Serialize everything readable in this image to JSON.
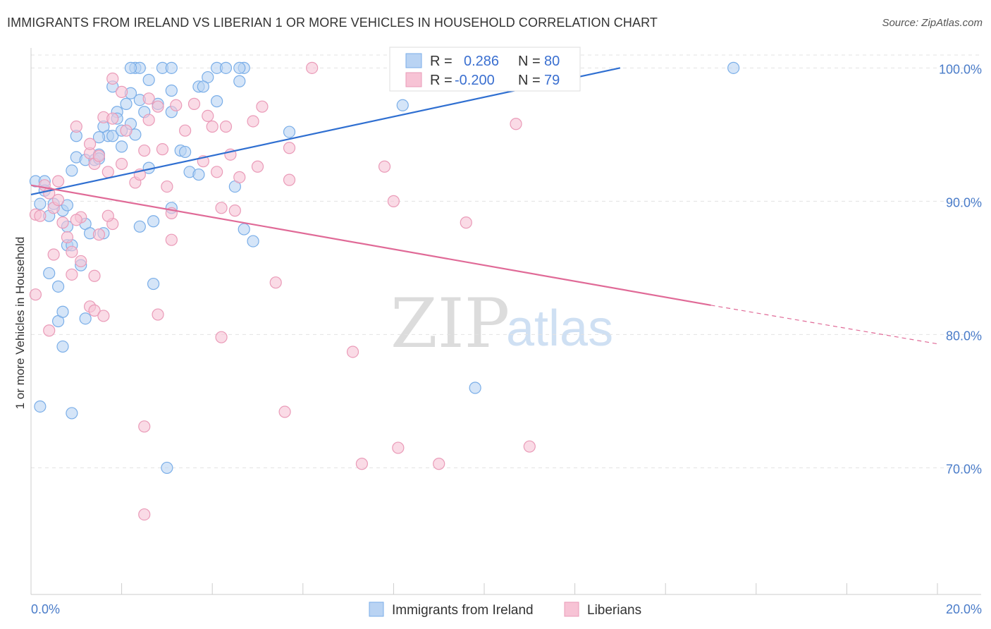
{
  "title": "IMMIGRANTS FROM IRELAND VS LIBERIAN 1 OR MORE VEHICLES IN HOUSEHOLD CORRELATION CHART",
  "source": "Source: ZipAtlas.com",
  "watermark": {
    "zip": "ZIP",
    "atlas": "atlas"
  },
  "chart_data": {
    "type": "scatter",
    "title": "IMMIGRANTS FROM IRELAND VS LIBERIAN 1 OR MORE VEHICLES IN HOUSEHOLD CORRELATION CHART",
    "xlabel": "",
    "ylabel": "1 or more Vehicles in Household",
    "xlim": [
      0,
      20
    ],
    "ylim": [
      60.5,
      101.5
    ],
    "x_tick_labels": {
      "left": "0.0%",
      "right": "20.0%"
    },
    "y_ticks": [
      {
        "value": 100,
        "label": "100.0%"
      },
      {
        "value": 90,
        "label": "90.0%"
      },
      {
        "value": 80,
        "label": "80.0%"
      },
      {
        "value": 70,
        "label": "70.0%"
      }
    ],
    "grid": true,
    "legend_position": "top-center",
    "stats": [
      {
        "r_label": "R =",
        "r_value": "0.286",
        "n_label": "N =",
        "n_value": "80"
      },
      {
        "r_label": "R =",
        "r_value": "-0.200",
        "n_label": "N =",
        "n_value": "79"
      }
    ],
    "series": [
      {
        "name": "Immigrants from Ireland",
        "color": "#7aaee8",
        "fill": "#b9d3f3",
        "trend_color": "#2f6fd1",
        "trend": {
          "x": [
            0,
            13
          ],
          "y": [
            90.5,
            100
          ]
        },
        "points": [
          [
            0.1,
            91.5
          ],
          [
            0.2,
            89.8
          ],
          [
            0.3,
            91.5
          ],
          [
            0.4,
            88.9
          ],
          [
            0.5,
            89.8
          ],
          [
            0.7,
            89.3
          ],
          [
            0.8,
            86.7
          ],
          [
            0.8,
            88.1
          ],
          [
            0.4,
            84.6
          ],
          [
            0.6,
            83.6
          ],
          [
            0.6,
            81.0
          ],
          [
            0.7,
            81.7
          ],
          [
            0.7,
            79.1
          ],
          [
            0.9,
            74.1
          ],
          [
            0.2,
            74.6
          ],
          [
            0.9,
            86.7
          ],
          [
            1.1,
            85.2
          ],
          [
            1.2,
            88.3
          ],
          [
            1.3,
            87.6
          ],
          [
            1.6,
            87.6
          ],
          [
            1.2,
            81.2
          ],
          [
            0.9,
            92.3
          ],
          [
            1.0,
            94.9
          ],
          [
            1.0,
            93.3
          ],
          [
            1.2,
            93.1
          ],
          [
            1.4,
            93.1
          ],
          [
            1.5,
            93.5
          ],
          [
            1.5,
            93.2
          ],
          [
            1.6,
            95.6
          ],
          [
            1.7,
            94.9
          ],
          [
            1.8,
            94.9
          ],
          [
            1.9,
            96.7
          ],
          [
            2.0,
            95.3
          ],
          [
            2.2,
            95.8
          ],
          [
            2.3,
            95.0
          ],
          [
            1.8,
            98.6
          ],
          [
            1.9,
            96.2
          ],
          [
            2.1,
            97.3
          ],
          [
            2.2,
            98.1
          ],
          [
            2.0,
            94.1
          ],
          [
            2.4,
            97.6
          ],
          [
            2.5,
            96.7
          ],
          [
            2.6,
            92.5
          ],
          [
            2.8,
            97.3
          ],
          [
            2.3,
            100
          ],
          [
            2.4,
            100
          ],
          [
            2.6,
            99.1
          ],
          [
            2.9,
            100
          ],
          [
            3.1,
            100
          ],
          [
            3.1,
            98.3
          ],
          [
            3.1,
            96.7
          ],
          [
            3.3,
            93.8
          ],
          [
            3.5,
            92.2
          ],
          [
            3.7,
            92.0
          ],
          [
            3.7,
            98.6
          ],
          [
            3.9,
            99.3
          ],
          [
            4.1,
            97.5
          ],
          [
            4.1,
            100
          ],
          [
            4.3,
            100
          ],
          [
            4.6,
            99.0
          ],
          [
            4.7,
            100
          ],
          [
            4.6,
            100
          ],
          [
            3.1,
            89.5
          ],
          [
            2.7,
            88.5
          ],
          [
            2.4,
            88.1
          ],
          [
            2.7,
            83.8
          ],
          [
            3.8,
            98.6
          ],
          [
            4.5,
            91.1
          ],
          [
            4.7,
            87.9
          ],
          [
            4.9,
            87.0
          ],
          [
            5.7,
            95.2
          ],
          [
            8.2,
            97.2
          ],
          [
            9.8,
            76.0
          ],
          [
            3.0,
            70.0
          ],
          [
            15.5,
            100
          ],
          [
            2.2,
            100
          ],
          [
            3.4,
            93.7
          ],
          [
            1.5,
            94.8
          ],
          [
            0.8,
            89.7
          ],
          [
            0.3,
            90.8
          ]
        ]
      },
      {
        "name": "Liberians",
        "color": "#ea9bb8",
        "fill": "#f7c3d5",
        "trend_color": "#e06a97",
        "trend": {
          "x": [
            0,
            15
          ],
          "y": [
            91.2,
            82.2
          ]
        },
        "trend_dash": {
          "x": [
            15,
            20
          ],
          "y": [
            82.2,
            79.3
          ]
        },
        "points": [
          [
            0.1,
            89.0
          ],
          [
            0.2,
            88.9
          ],
          [
            0.3,
            91.2
          ],
          [
            0.4,
            90.6
          ],
          [
            0.5,
            89.5
          ],
          [
            0.6,
            90.1
          ],
          [
            0.6,
            91.5
          ],
          [
            0.7,
            88.4
          ],
          [
            0.8,
            87.3
          ],
          [
            0.9,
            86.2
          ],
          [
            0.5,
            86.0
          ],
          [
            0.9,
            84.5
          ],
          [
            1.1,
            85.5
          ],
          [
            1.4,
            84.4
          ],
          [
            0.4,
            80.3
          ],
          [
            1.3,
            82.1
          ],
          [
            1.4,
            81.8
          ],
          [
            1.6,
            81.4
          ],
          [
            0.1,
            83.0
          ],
          [
            1.5,
            87.5
          ],
          [
            1.8,
            88.3
          ],
          [
            1.1,
            88.8
          ],
          [
            1.0,
            88.6
          ],
          [
            1.7,
            88.9
          ],
          [
            1.0,
            95.6
          ],
          [
            1.3,
            93.6
          ],
          [
            1.3,
            94.3
          ],
          [
            1.4,
            92.8
          ],
          [
            1.5,
            93.4
          ],
          [
            1.6,
            96.3
          ],
          [
            1.7,
            92.2
          ],
          [
            1.8,
            96.2
          ],
          [
            1.8,
            99.2
          ],
          [
            2.0,
            98.2
          ],
          [
            2.0,
            92.8
          ],
          [
            2.1,
            95.3
          ],
          [
            2.3,
            91.4
          ],
          [
            2.4,
            92.0
          ],
          [
            2.5,
            93.8
          ],
          [
            2.6,
            96.1
          ],
          [
            2.6,
            97.7
          ],
          [
            2.8,
            97.1
          ],
          [
            2.9,
            93.9
          ],
          [
            3.0,
            91.1
          ],
          [
            3.1,
            89.1
          ],
          [
            3.2,
            97.2
          ],
          [
            3.4,
            95.3
          ],
          [
            3.6,
            97.3
          ],
          [
            3.8,
            93.0
          ],
          [
            3.9,
            96.4
          ],
          [
            4.0,
            95.6
          ],
          [
            4.1,
            92.2
          ],
          [
            4.2,
            89.5
          ],
          [
            4.3,
            95.6
          ],
          [
            4.4,
            93.5
          ],
          [
            4.5,
            89.3
          ],
          [
            4.6,
            91.8
          ],
          [
            4.9,
            96.0
          ],
          [
            5.0,
            92.6
          ],
          [
            5.1,
            97.1
          ],
          [
            5.4,
            83.9
          ],
          [
            5.7,
            94.0
          ],
          [
            5.7,
            91.6
          ],
          [
            6.2,
            100
          ],
          [
            7.1,
            78.7
          ],
          [
            7.8,
            92.6
          ],
          [
            8.0,
            90.0
          ],
          [
            8.1,
            71.5
          ],
          [
            9.6,
            88.4
          ],
          [
            10.7,
            95.8
          ],
          [
            11.0,
            71.6
          ],
          [
            7.3,
            70.3
          ],
          [
            9.0,
            70.3
          ],
          [
            5.6,
            74.2
          ],
          [
            4.2,
            79.8
          ],
          [
            2.8,
            81.5
          ],
          [
            2.5,
            73.1
          ],
          [
            2.5,
            66.5
          ],
          [
            3.1,
            87.1
          ]
        ]
      }
    ]
  }
}
